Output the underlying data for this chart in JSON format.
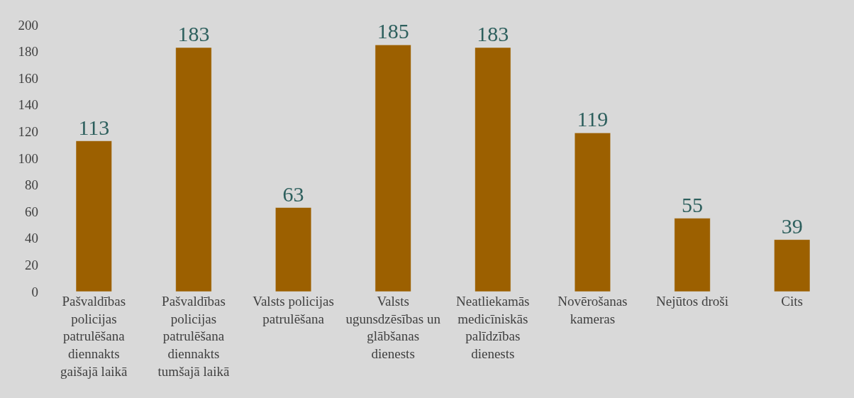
{
  "chart_data": {
    "type": "bar",
    "categories": [
      "Pašvaldības policijas patrulēšana diennakts gaišajā laikā",
      "Pašvaldības policijas patrulēšana diennakts tumšajā laikā",
      "Valsts policijas patrulēšana",
      "Valsts ugunsdzēsības un glābšanas dienests",
      "Neatliekamās medicīniskās palīdzības dienests",
      "Novērošanas kameras",
      "Nejūtos droši",
      "Cits"
    ],
    "values": [
      113,
      183,
      63,
      185,
      183,
      119,
      55,
      39
    ],
    "color": "#9c6000",
    "ylim": [
      0,
      200
    ],
    "yticks": [
      0,
      20,
      40,
      60,
      80,
      100,
      120,
      140,
      160,
      180,
      200
    ],
    "data_labels": true,
    "grid": false,
    "legend": false
  }
}
